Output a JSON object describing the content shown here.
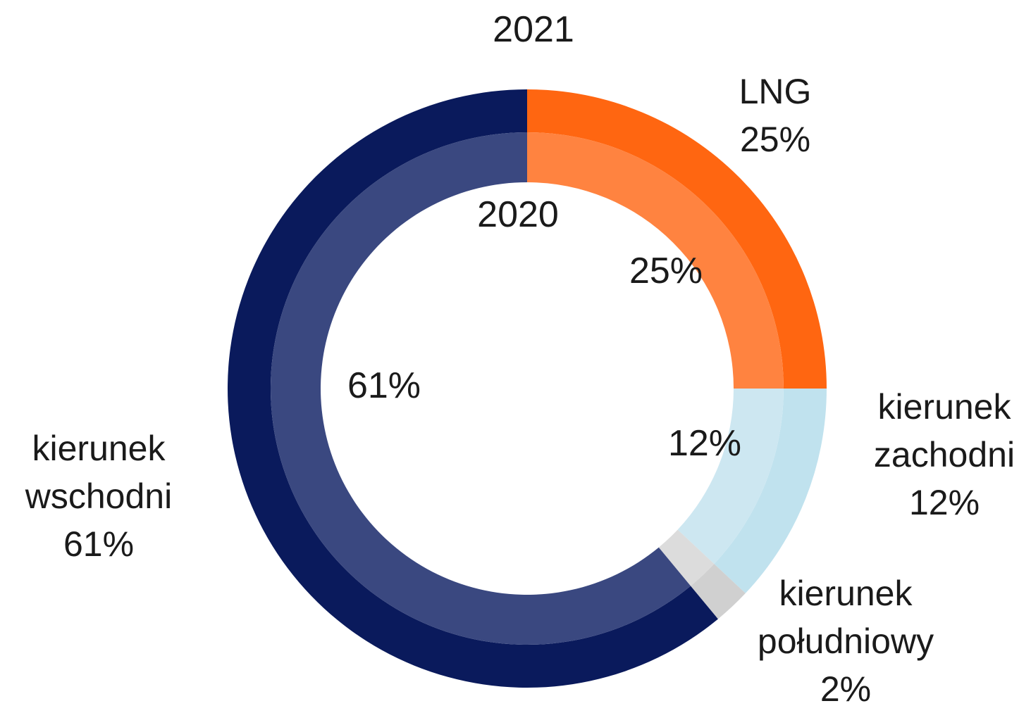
{
  "chart_data": {
    "type": "donut",
    "categories": [
      "LNG",
      "kierunek zachodni",
      "kierunek południowy",
      "kierunek wschodni"
    ],
    "series": [
      {
        "name": "2021",
        "values": [
          25,
          12,
          2,
          61
        ],
        "value_labels": [
          "25%",
          "12%",
          "2%",
          "61%"
        ],
        "colors": [
          "#ff6611",
          "#c0e2ee",
          "#d0d0d0",
          "#0a1a5c"
        ]
      },
      {
        "name": "2020",
        "values": [
          25,
          12,
          2,
          61
        ],
        "value_labels": [
          "25%",
          "12%",
          null,
          "61%"
        ],
        "colors": [
          "#ff8340",
          "#cde7f1",
          "#dcdcdc",
          "#3a4880"
        ]
      }
    ]
  }
}
